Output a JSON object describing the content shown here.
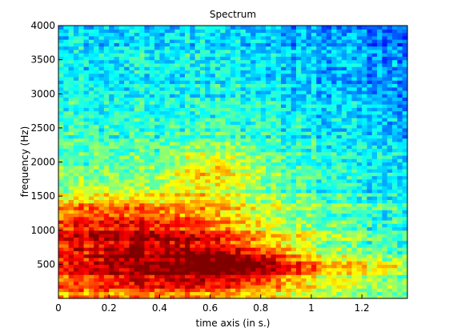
{
  "chart_data": {
    "type": "heatmap",
    "title": "Spectrum",
    "xlabel": "time axis (in s.)",
    "ylabel": "frequency (Hz)",
    "xlim": [
      0,
      1.38
    ],
    "ylim": [
      0,
      4000
    ],
    "x_ticks": [
      0,
      0.2,
      0.4,
      0.6,
      0.8,
      1,
      1.2
    ],
    "x_tick_labels": [
      "0",
      "0.2",
      "0.4",
      "0.6",
      "0.8",
      "1",
      "1.2"
    ],
    "y_ticks": [
      500,
      1000,
      1500,
      2000,
      2500,
      3000,
      3500,
      4000
    ],
    "y_tick_labels": [
      "500",
      "1000",
      "1500",
      "2000",
      "2500",
      "3000",
      "3500",
      "4000"
    ],
    "colormap": "jet",
    "grid": false,
    "time_bins": 69,
    "freq_bins": 80,
    "intensity_regions": [
      {
        "time_range": [
          0,
          0.5
        ],
        "freq_range": [
          0,
          900
        ],
        "level": "highest"
      },
      {
        "time_range": [
          0.5,
          0.95
        ],
        "freq_range": [
          200,
          700
        ],
        "level": "highest"
      },
      {
        "time_range": [
          0,
          0.5
        ],
        "freq_range": [
          900,
          1500
        ],
        "level": "high"
      },
      {
        "time_range": [
          0.45,
          0.8
        ],
        "freq_range": [
          1500,
          2100
        ],
        "level": "medium-high"
      },
      {
        "time_range": [
          0.95,
          1.38
        ],
        "freq_range": [
          350,
          650
        ],
        "level": "medium-high"
      },
      {
        "time_range": [
          0.8,
          1.38
        ],
        "freq_range": [
          2000,
          4000
        ],
        "level": "low"
      }
    ]
  }
}
